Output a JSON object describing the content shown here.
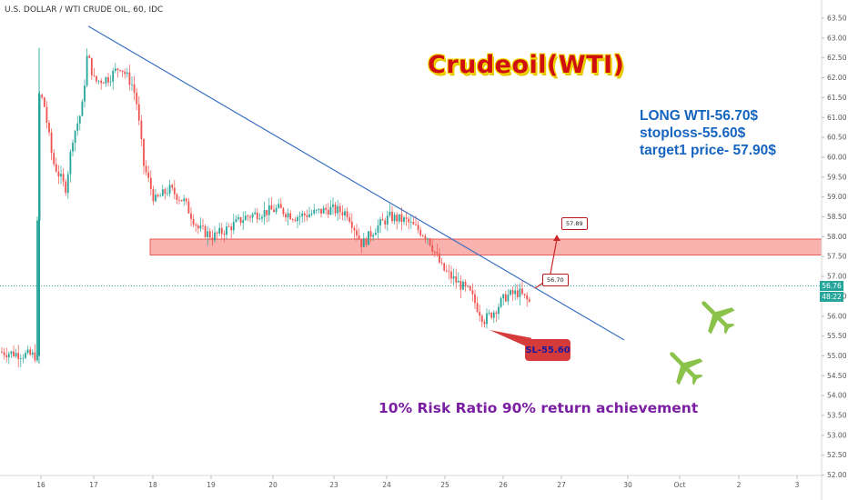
{
  "header": {
    "symbol_title": "U.S. DOLLAR / WTI CRUDE OIL, 60, IDC"
  },
  "annotations": {
    "title": "Crudeoil(WTI)",
    "trade_lines": [
      "LONG WTI-56.70$",
      "stoploss-55.60$",
      "target1 price- 57.90$"
    ],
    "bottom_note": "10% Risk Ratio 90% return achievement",
    "sl_callout": "SL-55.60",
    "entry_label": "56.70",
    "target_label": "57.89"
  },
  "price_tags": {
    "last_price": "56.76",
    "countdown": "48:22"
  },
  "colors": {
    "up": "#26a69a",
    "down": "#ef5350",
    "trendline": "#3a6fc4",
    "zone_fill": "#f8a5a0",
    "zone_border": "#e53935",
    "plane": "#8bc34a"
  },
  "chart_data": {
    "type": "candlestick",
    "title": "",
    "y_axis": {
      "range": [
        51.8,
        63.6
      ],
      "ticks": [
        "63.50",
        "63.00",
        "62.50",
        "62.00",
        "61.50",
        "61.00",
        "60.50",
        "60.00",
        "59.50",
        "59.00",
        "58.50",
        "58.00",
        "57.50",
        "57.00",
        "56.50",
        "56.00",
        "55.50",
        "55.00",
        "54.50",
        "54.00",
        "53.50",
        "53.00",
        "52.50",
        "52.00"
      ]
    },
    "x_axis": {
      "ticks": [
        "16",
        "17",
        "18",
        "19",
        "20",
        "23",
        "24",
        "25",
        "26",
        "27",
        "30",
        "Oct",
        "2",
        "3"
      ]
    },
    "waypoints": [
      [
        0,
        55.1
      ],
      [
        40,
        55.0
      ],
      [
        42,
        61.6
      ],
      [
        48,
        61.4
      ],
      [
        58,
        59.9
      ],
      [
        72,
        59.2
      ],
      [
        80,
        60.5
      ],
      [
        90,
        61.2
      ],
      [
        96,
        62.6
      ],
      [
        104,
        61.9
      ],
      [
        120,
        62.0
      ],
      [
        132,
        62.3
      ],
      [
        146,
        61.8
      ],
      [
        150,
        61.4
      ],
      [
        158,
        59.8
      ],
      [
        170,
        58.9
      ],
      [
        186,
        59.2
      ],
      [
        202,
        58.9
      ],
      [
        218,
        58.2
      ],
      [
        234,
        58.0
      ],
      [
        250,
        58.2
      ],
      [
        270,
        58.5
      ],
      [
        286,
        58.6
      ],
      [
        306,
        58.7
      ],
      [
        324,
        58.5
      ],
      [
        346,
        58.6
      ],
      [
        362,
        58.7
      ],
      [
        382,
        58.6
      ],
      [
        398,
        57.8
      ],
      [
        412,
        58.2
      ],
      [
        428,
        58.5
      ],
      [
        446,
        58.4
      ],
      [
        470,
        58.0
      ],
      [
        486,
        57.2
      ],
      [
        500,
        56.9
      ],
      [
        516,
        56.6
      ],
      [
        532,
        55.9
      ],
      [
        542,
        56.1
      ],
      [
        556,
        56.5
      ],
      [
        570,
        56.6
      ],
      [
        584,
        56.3
      ]
    ],
    "trendline": {
      "from": {
        "day": "17",
        "price": 63.3
      },
      "to": {
        "day": "30",
        "price": 55.4
      }
    },
    "zone": {
      "top": 57.94,
      "bottom": 57.54
    },
    "horizontal_line": 56.76,
    "entry": 56.7,
    "target": 57.89,
    "stop_loss": 55.6
  }
}
